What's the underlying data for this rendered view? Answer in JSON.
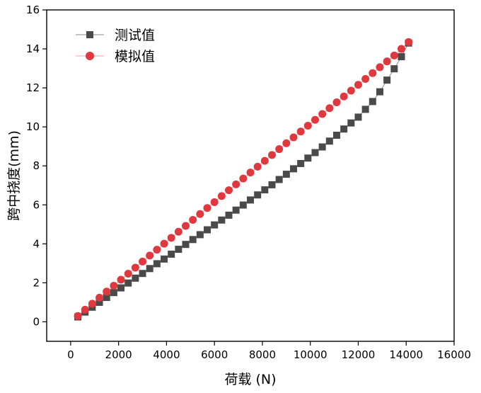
{
  "chart_data": {
    "type": "line",
    "xlabel": "荷载 (N)",
    "ylabel": "跨中挠度(mm)",
    "xlim": [
      -1000,
      16000
    ],
    "ylim": [
      -1,
      16
    ],
    "xticks": [
      0,
      2000,
      4000,
      6000,
      8000,
      10000,
      12000,
      14000,
      16000
    ],
    "yticks": [
      0,
      2,
      4,
      6,
      8,
      10,
      12,
      14,
      16
    ],
    "xtick_labels": [
      "0",
      "2000",
      "4000",
      "6000",
      "8000",
      "10000",
      "12000",
      "14000",
      "16000"
    ],
    "ytick_labels": [
      "0",
      "2",
      "4",
      "6",
      "8",
      "10",
      "12",
      "14",
      "16"
    ],
    "grid": false,
    "legend_position": "top-left",
    "series": [
      {
        "name": "测试值",
        "marker": "square",
        "color": "#4a4a4a",
        "line_color": "#8a8a8a",
        "x": [
          300,
          600,
          900,
          1200,
          1500,
          1800,
          2100,
          2400,
          2700,
          3000,
          3300,
          3600,
          3900,
          4200,
          4500,
          4800,
          5100,
          5400,
          5700,
          6000,
          6300,
          6600,
          6900,
          7200,
          7500,
          7800,
          8100,
          8400,
          8700,
          9000,
          9300,
          9600,
          9900,
          10200,
          10500,
          10800,
          11100,
          11400,
          11700,
          12000,
          12300,
          12600,
          12900,
          13200,
          13500,
          13800,
          14100
        ],
        "y": [
          0.25,
          0.5,
          0.75,
          1.0,
          1.25,
          1.5,
          1.74,
          1.99,
          2.24,
          2.48,
          2.73,
          2.98,
          3.22,
          3.47,
          3.72,
          3.97,
          4.22,
          4.47,
          4.72,
          4.97,
          5.22,
          5.47,
          5.73,
          5.99,
          6.25,
          6.51,
          6.77,
          7.03,
          7.3,
          7.57,
          7.85,
          8.12,
          8.4,
          8.68,
          8.97,
          9.27,
          9.57,
          9.89,
          10.2,
          10.5,
          10.9,
          11.3,
          11.8,
          12.4,
          12.98,
          13.6,
          14.3
        ]
      },
      {
        "name": "模拟值",
        "marker": "circle",
        "color": "#e0383f",
        "line_color": "#f0a0a4",
        "x": [
          300,
          600,
          900,
          1200,
          1500,
          1800,
          2100,
          2400,
          2700,
          3000,
          3300,
          3600,
          3900,
          4200,
          4500,
          4800,
          5100,
          5400,
          5700,
          6000,
          6300,
          6600,
          6900,
          7200,
          7500,
          7800,
          8100,
          8400,
          8700,
          9000,
          9300,
          9600,
          9900,
          10200,
          10500,
          10800,
          11100,
          11400,
          11700,
          12000,
          12300,
          12600,
          12900,
          13200,
          13500,
          13800,
          14100
        ],
        "y": [
          0.3,
          0.62,
          0.93,
          1.24,
          1.55,
          1.85,
          2.16,
          2.47,
          2.78,
          3.09,
          3.4,
          3.7,
          4.01,
          4.31,
          4.62,
          4.92,
          5.23,
          5.53,
          5.84,
          6.14,
          6.45,
          6.75,
          7.05,
          7.35,
          7.66,
          7.96,
          8.26,
          8.56,
          8.86,
          9.16,
          9.46,
          9.76,
          10.06,
          10.36,
          10.66,
          10.96,
          11.26,
          11.56,
          11.86,
          12.16,
          12.46,
          12.76,
          13.06,
          13.36,
          13.66,
          14.0,
          14.35
        ]
      }
    ]
  }
}
